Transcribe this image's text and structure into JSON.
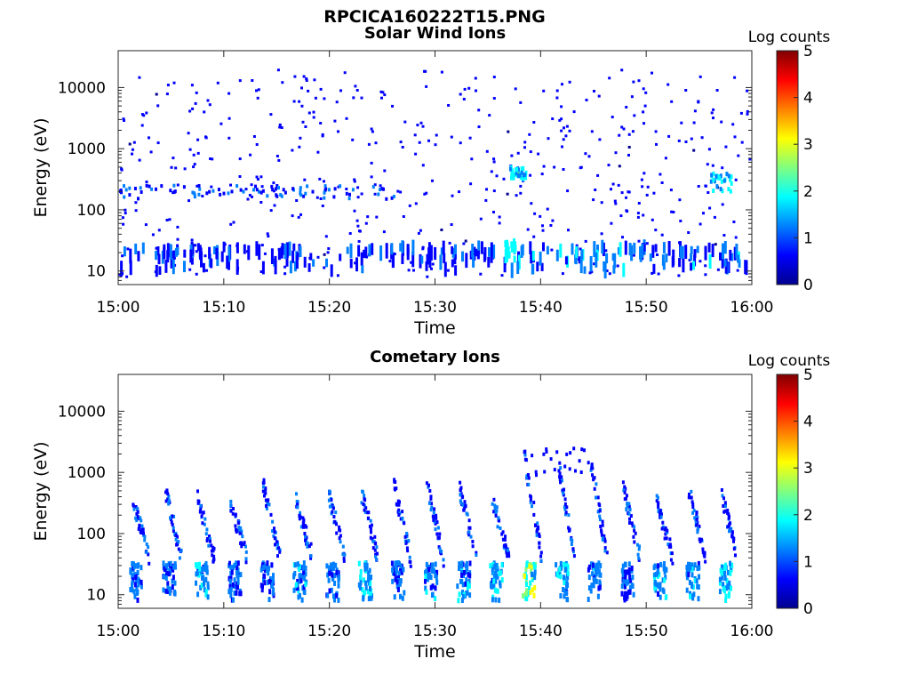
{
  "figure": {
    "suptitle": "RPCICA160222T15.PNG"
  },
  "colorbar_label": "Log counts",
  "colorbar_ticks": [
    "5",
    "4",
    "3",
    "2",
    "1",
    "0"
  ],
  "colormap": [
    "#00008f",
    "#0000ff",
    "#0080ff",
    "#00ffff",
    "#80ff80",
    "#ffff00",
    "#ff8000",
    "#ff0000",
    "#800000"
  ],
  "chart_data": [
    {
      "type": "heatmap",
      "title": "Solar Wind Ions",
      "xlabel": "Time",
      "ylabel": "Energy (eV)",
      "x_tick_labels": [
        "15:00",
        "15:10",
        "15:20",
        "15:30",
        "15:40",
        "15:50",
        "16:00"
      ],
      "y_tick_labels": [
        "10000",
        "1000",
        "100",
        "10"
      ],
      "y_scale": "log",
      "ylim": [
        6,
        40000
      ],
      "xlim": [
        "15:00",
        "16:00"
      ],
      "color_scale": "jet, log counts 0 to 5",
      "features": [
        {
          "band": "sparse hits at 10-25 eV throughout, denser after 15:37",
          "level": 0.8
        },
        {
          "band": "scattered hits at 150-250 eV, 15:00-15:25",
          "level": 0.7
        },
        {
          "band": "enhanced clusters at 300-500 eV around 15:37-15:38",
          "level": 1.8
        },
        {
          "band": "enhanced clusters at 200-400 eV around 15:56-15:58",
          "level": 1.7
        },
        {
          "band": "isolated hits up to ~20000 eV",
          "level": 0.3
        }
      ]
    },
    {
      "type": "heatmap",
      "title": "Cometary Ions",
      "xlabel": "Time",
      "ylabel": "Energy (eV)",
      "x_tick_labels": [
        "15:00",
        "15:10",
        "15:20",
        "15:30",
        "15:40",
        "15:50",
        "16:00"
      ],
      "y_tick_labels": [
        "10000",
        "1000",
        "100",
        "10"
      ],
      "y_scale": "log",
      "ylim": [
        6,
        40000
      ],
      "xlim": [
        "15:00",
        "16:00"
      ],
      "color_scale": "jet, log counts 0 to 5",
      "features": [
        {
          "band": "periodic bursts at 10-30 eV roughly every 3 minutes",
          "level": 1.8
        },
        {
          "band": "peak burst near 15:37 at 15-30 eV",
          "level": 2.8
        },
        {
          "band": "dispersed streaks rising to 100-600 eV after each burst",
          "level": 1.0
        },
        {
          "band": "high-energy streaks up to ~2000 eV around 15:38-15:45",
          "level": 0.6
        }
      ]
    }
  ]
}
